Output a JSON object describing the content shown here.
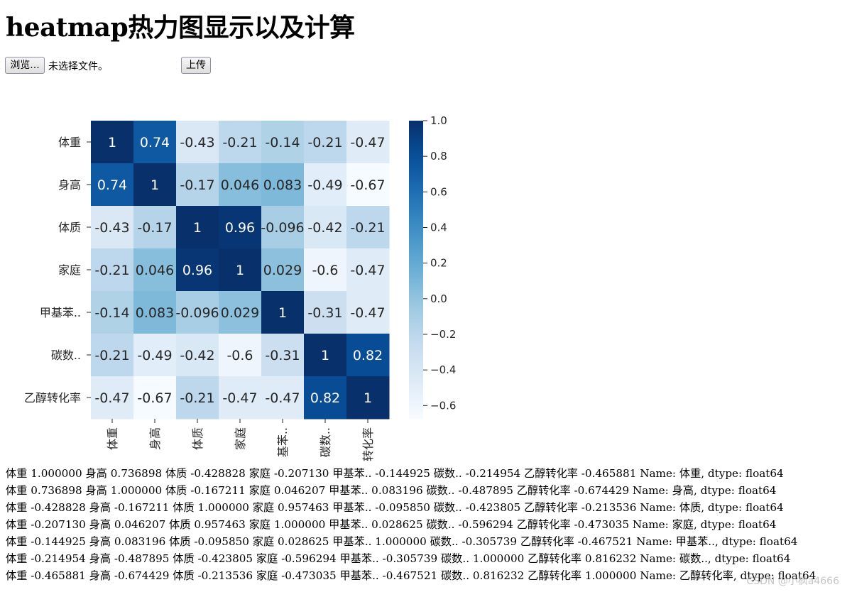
{
  "page": {
    "title": "heatmap热力图显示以及计算"
  },
  "upload": {
    "browse_label": "浏览...",
    "file_status": "未选择文件。",
    "upload_label": "上传"
  },
  "chart_data": {
    "type": "heatmap",
    "title": "",
    "row_labels": [
      "体重",
      "身高",
      "体质",
      "家庭",
      "甲基苯..",
      "碳数..",
      "乙醇转化率"
    ],
    "col_labels": [
      "体重",
      "身高",
      "体质",
      "家庭",
      "基苯..",
      "碳数..",
      "转化率"
    ],
    "values": [
      [
        1,
        0.74,
        -0.43,
        -0.21,
        -0.14,
        -0.21,
        -0.47
      ],
      [
        0.74,
        1,
        -0.17,
        0.046,
        0.083,
        -0.49,
        -0.67
      ],
      [
        -0.43,
        -0.17,
        1,
        0.96,
        -0.096,
        -0.42,
        -0.21
      ],
      [
        -0.21,
        0.046,
        0.96,
        1,
        0.029,
        -0.6,
        -0.47
      ],
      [
        -0.14,
        0.083,
        -0.096,
        0.029,
        1,
        -0.31,
        -0.47
      ],
      [
        -0.21,
        -0.49,
        -0.42,
        -0.6,
        -0.31,
        1,
        0.82
      ],
      [
        -0.47,
        -0.67,
        -0.21,
        -0.47,
        -0.47,
        0.82,
        1
      ]
    ],
    "cell_labels": [
      [
        "1",
        "0.74",
        "-0.43",
        "-0.21",
        "-0.14",
        "-0.21",
        "-0.47"
      ],
      [
        "0.74",
        "1",
        "-0.17",
        "0.046",
        "0.083",
        "-0.49",
        "-0.67"
      ],
      [
        "-0.43",
        "-0.17",
        "1",
        "0.96",
        "-0.096",
        "-0.42",
        "-0.21"
      ],
      [
        "-0.21",
        "0.046",
        "0.96",
        "1",
        "0.029",
        "-0.6",
        "-0.47"
      ],
      [
        "-0.14",
        "0.083",
        "-0.096",
        "0.029",
        "1",
        "-0.31",
        "-0.47"
      ],
      [
        "-0.21",
        "-0.49",
        "-0.42",
        "-0.6",
        "-0.31",
        "1",
        "0.82"
      ],
      [
        "-0.47",
        "-0.67",
        "-0.21",
        "-0.47",
        "-0.47",
        "0.82",
        "1"
      ]
    ],
    "colormap": "Blues",
    "vmin": -0.674429,
    "vmax": 1.0,
    "colorbar_ticks": [
      1.0,
      0.8,
      0.6,
      0.4,
      0.2,
      0.0,
      -0.2,
      -0.4,
      -0.6
    ],
    "colorbar_tick_labels": [
      "1.0",
      "0.8",
      "0.6",
      "0.4",
      "0.2",
      "0.0",
      "−0.2",
      "−0.4",
      "−0.6"
    ]
  },
  "output_lines": [
    "体重 1.000000 身高 0.736898 体质 -0.428828 家庭 -0.207130 甲基苯.. -0.144925 碳数.. -0.214954 乙醇转化率 -0.465881 Name: 体重, dtype: float64",
    "体重 0.736898 身高 1.000000 体质 -0.167211 家庭 0.046207 甲基苯.. 0.083196 碳数.. -0.487895 乙醇转化率 -0.674429 Name: 身高, dtype: float64",
    "体重 -0.428828 身高 -0.167211 体质 1.000000 家庭 0.957463 甲基苯.. -0.095850 碳数.. -0.423805 乙醇转化率 -0.213536 Name: 体质, dtype: float64",
    "体重 -0.207130 身高 0.046207 体质 0.957463 家庭 1.000000 甲基苯.. 0.028625 碳数.. -0.596294 乙醇转化率 -0.473035 Name: 家庭, dtype: float64",
    "体重 -0.144925 身高 0.083196 体质 -0.095850 家庭 0.028625 甲基苯.. 1.000000 碳数.. -0.305739 乙醇转化率 -0.467521 Name: 甲基苯.., dtype: float64",
    "体重 -0.214954 身高 -0.487895 体质 -0.423805 家庭 -0.596294 甲基苯.. -0.305739 碳数.. 1.000000 乙醇转化率 0.816232 Name: 碳数.., dtype: float64",
    "体重 -0.465881 身高 -0.674429 体质 -0.213536 家庭 -0.473035 甲基苯.. -0.467521 碳数.. 0.816232 乙醇转化率 1.000000 Name: 乙醇转化率, dtype: float64"
  ],
  "watermark": "CSDN @小枫a4666"
}
